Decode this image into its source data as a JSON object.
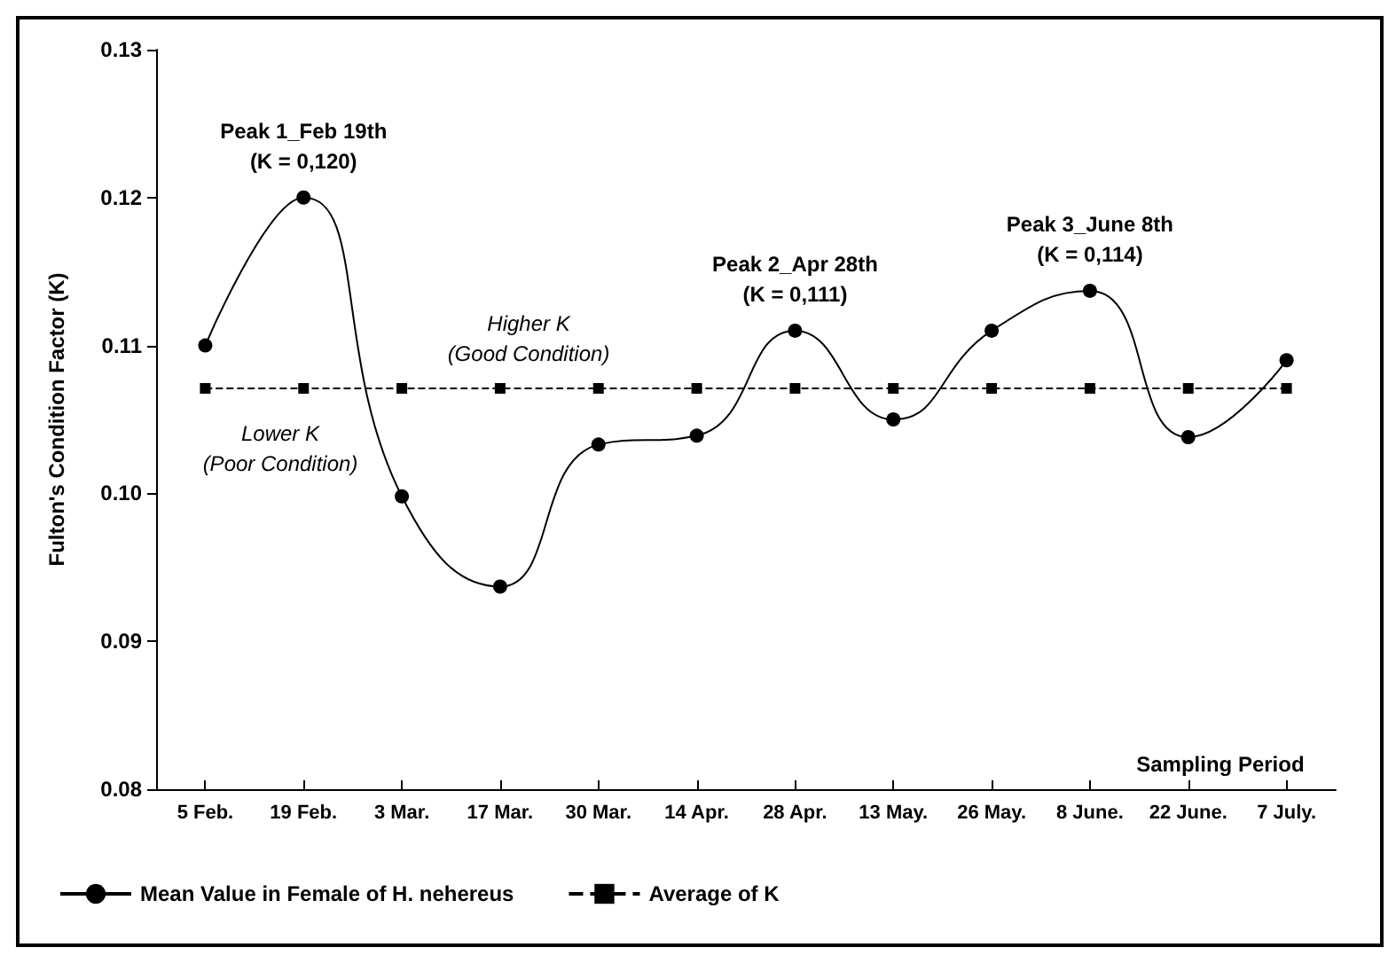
{
  "chart_data": {
    "type": "line",
    "xlabel": "Sampling Period",
    "ylabel": "Fulton's Condition Factor (K)",
    "categories": [
      "5 Feb.",
      "19 Feb.",
      "3 Mar.",
      "17 Mar.",
      "30 Mar.",
      "14 Apr.",
      "28 Apr.",
      "13 May.",
      "26 May.",
      "8 June.",
      "22 June.",
      "7 July."
    ],
    "series": [
      {
        "name": "Mean Value in Female of H. nehereus",
        "color": "#000000",
        "marker": "circle",
        "line_style": "solid",
        "values": [
          0.11,
          0.12,
          0.0998,
          0.0937,
          0.1033,
          0.1039,
          0.111,
          0.105,
          0.111,
          0.1137,
          0.1038,
          0.109
        ]
      },
      {
        "name": "Average of K",
        "color": "#000000",
        "marker": "square",
        "line_style": "dashed",
        "values": [
          0.1071,
          0.1071,
          0.1071,
          0.1071,
          0.1071,
          0.1071,
          0.1071,
          0.1071,
          0.1071,
          0.1071,
          0.1071,
          0.1071
        ]
      }
    ],
    "ylim": [
      0.08,
      0.13
    ],
    "yticks": [
      0.08,
      0.09,
      {
        "value": 0.1,
        "label": "0.10"
      },
      0.11,
      0.12,
      0.13
    ],
    "grid": false,
    "legend": "bottom",
    "annotations": [
      {
        "text": "Peak 1_Feb 19th\n(K = 0,120)",
        "x": "19 Feb.",
        "y": 0.12
      },
      {
        "text": "Peak 2_Apr 28th\n(K = 0,111)",
        "x": "28 Apr.",
        "y": 0.111
      },
      {
        "text": "Peak 3_June 8th\n(K = 0,114)",
        "x": "8 June.",
        "y": 0.1137
      },
      "Higher K\n(Good Condition)",
      "Lower K\n(Poor Condition)"
    ]
  }
}
